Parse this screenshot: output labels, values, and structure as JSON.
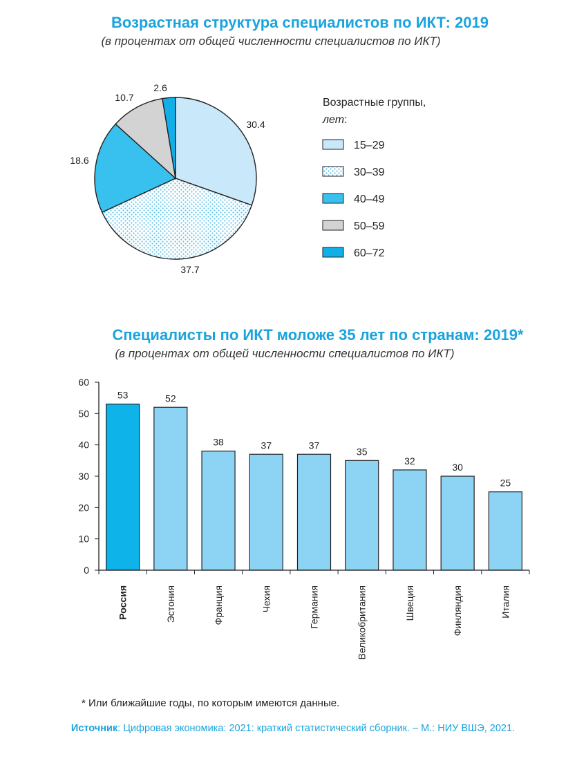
{
  "pie": {
    "title": "Возрастная структура специалистов по ИКТ: 2019",
    "subtitle": "(в процентах от общей численности специалистов по ИКТ)",
    "legend_title_line1": "Возрастные группы,",
    "legend_title_line2": "лет",
    "legend_title_colon": ":"
  },
  "bar": {
    "title": "Специалисты по ИКТ моложе 35 лет по странам: 2019*",
    "subtitle": "(в процентах от общей численности специалистов по ИКТ)"
  },
  "footnote": "*  Или ближайшие годы, по которым имеются данные.",
  "source": {
    "label": "Источник",
    "text": ": Цифровая экономика: 2021: краткий статистический сборник. – М.: НИУ ВШЭ, 2021."
  },
  "colors": {
    "accent": "#1aa3de",
    "pie_15_29": "#c9e9fa",
    "pie_30_39_dots": "#5bc3ec",
    "pie_40_49": "#38c1ee",
    "pie_50_59": "#d3d3d3",
    "pie_60_72": "#12aee8",
    "bar_highlight": "#0eb3ea",
    "bar_default": "#8dd3f3"
  },
  "chart_data": [
    {
      "type": "pie",
      "title": "Возрастная структура специалистов по ИКТ: 2019",
      "categories": [
        "15–29",
        "30–39",
        "40–49",
        "50–59",
        "60–72"
      ],
      "values": [
        30.4,
        37.7,
        18.6,
        10.7,
        2.6
      ],
      "labels": [
        "30.4",
        "37.7",
        "18.6",
        "10.7",
        "2.6"
      ],
      "legend_position": "right"
    },
    {
      "type": "bar",
      "title": "Специалисты по ИКТ моложе 35 лет по странам: 2019*",
      "categories": [
        "Россия",
        "Эстония",
        "Франция",
        "Чехия",
        "Германия",
        "Великобритания",
        "Швеция",
        "Финляндия",
        "Италия"
      ],
      "values": [
        53,
        52,
        38,
        37,
        37,
        35,
        32,
        30,
        25
      ],
      "highlight": "Россия",
      "yticks": [
        "0",
        "10",
        "20",
        "30",
        "40",
        "50",
        "60"
      ],
      "ylim": [
        0,
        60
      ],
      "grid": false
    }
  ]
}
